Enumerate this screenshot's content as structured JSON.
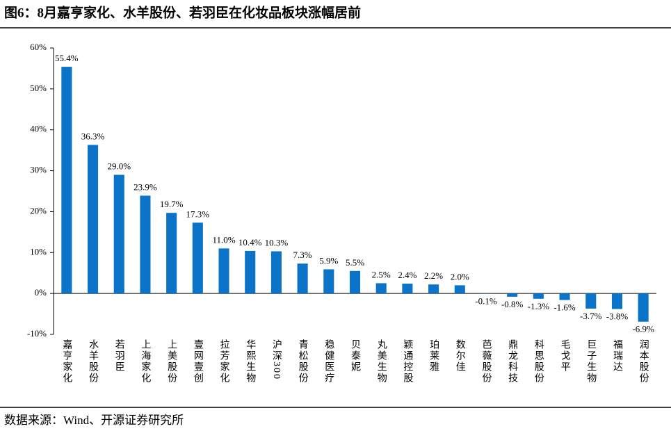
{
  "chart_data": {
    "type": "bar",
    "title": "图6：8月嘉亨家化、水羊股份、若羽臣在化妆品板块涨幅居前",
    "source": "数据来源：Wind、开源证券研究所",
    "categories": [
      "嘉亨家化",
      "水羊股份",
      "若羽臣",
      "上海家化",
      "上美股份",
      "壹网壹创",
      "拉芳家化",
      "华熙生物",
      "沪深300",
      "青松股份",
      "稳健医疗",
      "贝泰妮",
      "丸美生物",
      "颖通控股",
      "珀莱雅",
      "数尔佳",
      "芭薇股份",
      "鼎龙科技",
      "科思股份",
      "毛戈平",
      "巨子生物",
      "福瑞达",
      "润本股份"
    ],
    "values": [
      55.4,
      36.3,
      29.0,
      23.9,
      19.7,
      17.3,
      11.0,
      10.4,
      10.3,
      7.3,
      5.9,
      5.5,
      2.5,
      2.4,
      2.2,
      2.0,
      -0.1,
      -0.8,
      -1.3,
      -1.6,
      -3.7,
      -3.8,
      -6.9
    ],
    "value_labels": [
      "55.4%",
      "36.3%",
      "29.0%",
      "23.9%",
      "19.7%",
      "17.3%",
      "11.0%",
      "10.4%",
      "10.3%",
      "7.3%",
      "5.9%",
      "5.5%",
      "2.5%",
      "2.4%",
      "2.2%",
      "2.0%",
      "-0.1%",
      "-0.8%",
      "-1.3%",
      "-1.6%",
      "-3.7%",
      "-3.8%",
      "-6.9%"
    ],
    "color": "#0b74c8",
    "ylim": [
      -10,
      60
    ],
    "yticks": [
      {
        "value": -10,
        "label": "-10%"
      },
      {
        "value": 0,
        "label": "0%"
      },
      {
        "value": 10,
        "label": "10%"
      },
      {
        "value": 20,
        "label": "20%"
      },
      {
        "value": 30,
        "label": "30%"
      },
      {
        "value": 40,
        "label": "40%"
      },
      {
        "value": 50,
        "label": "50%"
      },
      {
        "value": 60,
        "label": "60%"
      }
    ],
    "grid": false
  }
}
